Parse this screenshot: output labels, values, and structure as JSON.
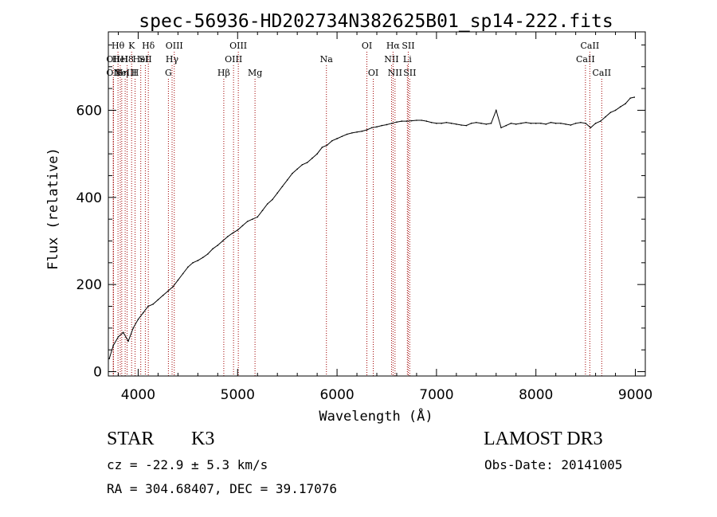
{
  "chart_data": {
    "type": "line",
    "title": "spec-56936-HD202734N382625B01_sp14-222.fits",
    "xlabel": "Wavelength (Å)",
    "ylabel": "Flux (relative)",
    "xlim": [
      3700,
      9100
    ],
    "ylim": [
      -10,
      780
    ],
    "x_ticks": [
      4000,
      5000,
      6000,
      7000,
      8000,
      9000
    ],
    "y_ticks": [
      0,
      200,
      400,
      600
    ],
    "grid": false,
    "series": [
      {
        "x": [
          3710,
          3750,
          3800,
          3850,
          3900,
          3950,
          4000,
          4050,
          4100,
          4150,
          4200,
          4250,
          4300,
          4350,
          4400,
          4450,
          4500,
          4550,
          4600,
          4650,
          4700,
          4750,
          4800,
          4850,
          4900,
          4950,
          5000,
          5050,
          5100,
          5150,
          5200,
          5250,
          5300,
          5350,
          5400,
          5450,
          5500,
          5550,
          5600,
          5650,
          5700,
          5750,
          5800,
          5850,
          5900,
          5950,
          6000,
          6050,
          6100,
          6150,
          6200,
          6250,
          6300,
          6350,
          6400,
          6450,
          6500,
          6550,
          6600,
          6650,
          6700,
          6750,
          6800,
          6850,
          6900,
          6950,
          7000,
          7050,
          7100,
          7150,
          7200,
          7250,
          7300,
          7350,
          7400,
          7450,
          7500,
          7550,
          7600,
          7650,
          7700,
          7750,
          7800,
          7850,
          7900,
          7950,
          8000,
          8050,
          8100,
          8150,
          8200,
          8250,
          8300,
          8350,
          8400,
          8450,
          8500,
          8550,
          8600,
          8650,
          8700,
          8750,
          8800,
          8850,
          8900,
          8950,
          8990
        ],
        "y": [
          30,
          60,
          80,
          90,
          70,
          100,
          120,
          135,
          150,
          155,
          165,
          175,
          185,
          195,
          210,
          225,
          240,
          250,
          255,
          262,
          270,
          282,
          290,
          300,
          310,
          318,
          325,
          335,
          345,
          350,
          355,
          370,
          385,
          395,
          410,
          425,
          440,
          455,
          465,
          475,
          480,
          490,
          500,
          515,
          520,
          530,
          535,
          540,
          545,
          548,
          550,
          552,
          555,
          560,
          562,
          565,
          567,
          570,
          573,
          575,
          575,
          576,
          577,
          577,
          575,
          572,
          570,
          570,
          572,
          570,
          568,
          566,
          565,
          570,
          572,
          570,
          568,
          570,
          600,
          560,
          565,
          570,
          568,
          570,
          572,
          570,
          570,
          570,
          568,
          572,
          570,
          570,
          568,
          566,
          570,
          572,
          570,
          560,
          570,
          575,
          585,
          595,
          600,
          608,
          615,
          628,
          630
        ]
      }
    ],
    "lines": [
      {
        "x": 3750,
        "label": "OII",
        "row": 2,
        "color": "#a00000"
      },
      {
        "x": 3750,
        "label": "OII",
        "row": 3,
        "color": "#a00000"
      },
      {
        "x": 3797,
        "label": "Hθ",
        "row": 1,
        "color": "#a00000"
      },
      {
        "x": 3820,
        "label": "HeI",
        "row": 2,
        "color": "#a00000"
      },
      {
        "x": 3835,
        "label": "Hη",
        "row": 3,
        "color": "#a00000"
      },
      {
        "x": 3869,
        "label": "NeIII",
        "row": 3,
        "color": "#a00000"
      },
      {
        "x": 3889,
        "label": "H8",
        "row": 2,
        "color": "#a00000"
      },
      {
        "x": 3934,
        "label": "K",
        "row": 1,
        "color": "#a00000"
      },
      {
        "x": 3969,
        "label": "H",
        "row": 3,
        "color": "#a00000"
      },
      {
        "x": 4026,
        "label": "HeI",
        "row": 2,
        "color": "#a00000"
      },
      {
        "x": 4072,
        "label": "SII",
        "row": 2,
        "color": "#a00000"
      },
      {
        "x": 4102,
        "label": "Hδ",
        "row": 1,
        "color": "#a00000"
      },
      {
        "x": 4304,
        "label": "G",
        "row": 3,
        "color": "#a00000"
      },
      {
        "x": 4341,
        "label": "Hγ",
        "row": 2,
        "color": "#a00000"
      },
      {
        "x": 4363,
        "label": "OIII",
        "row": 1,
        "color": "#a00000"
      },
      {
        "x": 4861,
        "label": "Hβ",
        "row": 3,
        "color": "#a00000"
      },
      {
        "x": 4959,
        "label": "OIII",
        "row": 2,
        "color": "#a00000"
      },
      {
        "x": 5007,
        "label": "OIII",
        "row": 1,
        "color": "#a00000"
      },
      {
        "x": 5175,
        "label": "Mg",
        "row": 3,
        "color": "#a00000"
      },
      {
        "x": 5893,
        "label": "Na",
        "row": 2,
        "color": "#a00000"
      },
      {
        "x": 6300,
        "label": "OI",
        "row": 1,
        "color": "#a00000"
      },
      {
        "x": 6364,
        "label": "OI",
        "row": 3,
        "color": "#a00000"
      },
      {
        "x": 6548,
        "label": "NII",
        "row": 2,
        "color": "#a00000"
      },
      {
        "x": 6563,
        "label": "Hα",
        "row": 1,
        "color": "#a00000"
      },
      {
        "x": 6583,
        "label": "NII",
        "row": 3,
        "color": "#a00000"
      },
      {
        "x": 6707,
        "label": "Li",
        "row": 2,
        "color": "#a00000"
      },
      {
        "x": 6716,
        "label": "SII",
        "row": 1,
        "color": "#a00000"
      },
      {
        "x": 6731,
        "label": "SII",
        "row": 3,
        "color": "#a00000"
      },
      {
        "x": 8498,
        "label": "CaII",
        "row": 2,
        "color": "#a00000"
      },
      {
        "x": 8542,
        "label": "CaII",
        "row": 1,
        "color": "#a00000"
      },
      {
        "x": 8662,
        "label": "CaII",
        "row": 3,
        "color": "#a00000"
      }
    ]
  },
  "info": {
    "type_label": "STAR",
    "subclass": "K3",
    "survey": "LAMOST DR3",
    "redshift": "cz = -22.9 ± 5.3 km/s",
    "obs_date": "Obs-Date: 20141005",
    "coords": "RA = 304.68407, DEC =  39.17076"
  }
}
